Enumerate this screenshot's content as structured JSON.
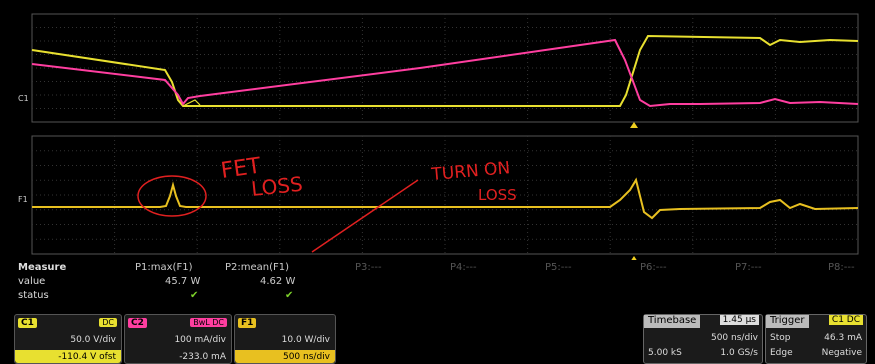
{
  "colors": {
    "c1": "#e8e030",
    "c2": "#ff3ea0",
    "f1": "#e8c020",
    "grid": "#3a3a3a",
    "annotation": "#e02020",
    "trigger": "#f0d020"
  },
  "grid_labels": {
    "top_channel": "C1",
    "bottom_channel": "F1"
  },
  "annotations": {
    "fet_loss_line1": "FET",
    "fet_loss_line2": "LOSS",
    "turn_on_line1": "TURN ON",
    "turn_on_line2": "LOSS"
  },
  "measure": {
    "title": "Measure",
    "row_value": "value",
    "row_status": "status",
    "params": [
      {
        "name": "P1:max(F1)",
        "value": "45.7 W",
        "status": "✔"
      },
      {
        "name": "P2:mean(F1)",
        "value": "4.62 W",
        "status": "✔"
      },
      {
        "name": "P3:---",
        "value": "",
        "status": ""
      },
      {
        "name": "P4:---",
        "value": "",
        "status": ""
      },
      {
        "name": "P5:---",
        "value": "",
        "status": ""
      },
      {
        "name": "P6:---",
        "value": "",
        "status": ""
      },
      {
        "name": "P7:---",
        "value": "",
        "status": ""
      },
      {
        "name": "P8:---",
        "value": "",
        "status": ""
      }
    ]
  },
  "channels": [
    {
      "tag": "C1",
      "coupling": "DC",
      "scale": "50.0 V/div",
      "offset": "-110.4 V ofst",
      "color": "#e8e030"
    },
    {
      "tag": "C2",
      "coupling": "BwL DC",
      "scale": "100 mA/div",
      "offset": "-233.0 mA",
      "color": "#ff3ea0"
    },
    {
      "tag": "F1",
      "coupling": "",
      "scale": "10.0 W/div",
      "offset": "500 ns/div",
      "color": "#e8c020"
    }
  ],
  "timebase": {
    "label": "Timebase",
    "delay": "1.45 µs",
    "per_div": "500 ns/div",
    "samples": "5.00 kS",
    "rate": "1.0 GS/s"
  },
  "trigger": {
    "label": "Trigger",
    "source": "C1 DC",
    "mode": "Stop",
    "level": "46.3 mA",
    "type": "Edge",
    "slope": "Negative"
  }
}
